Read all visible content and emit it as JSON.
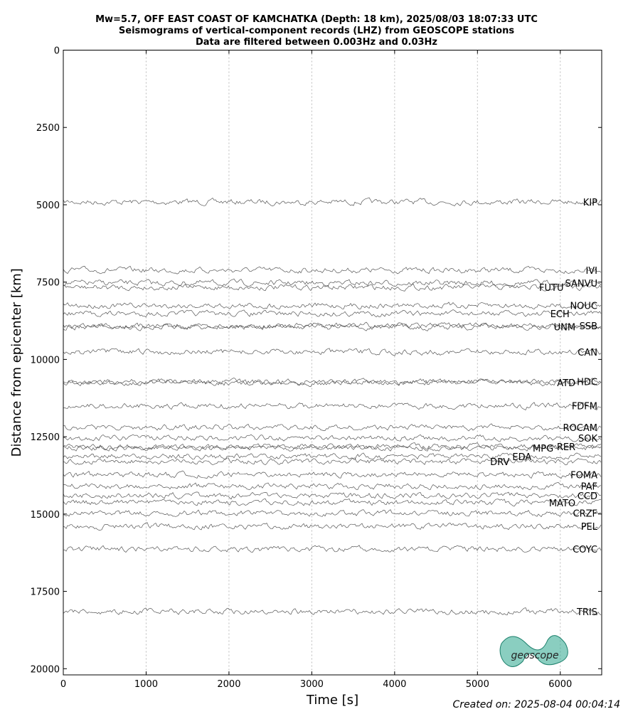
{
  "chart_data": {
    "type": "seismogram",
    "title": [
      "Mw=5.7, OFF EAST COAST OF KAMCHATKA (Depth: 18 km), 2025/08/03 18:07:33 UTC",
      "Seismograms of vertical-component records (LHZ) from GEOSCOPE stations",
      "Data are filtered between 0.003Hz and 0.03Hz"
    ],
    "x_label": "Time [s]",
    "y_label": "Distance from epicenter [km]",
    "xlim": [
      0,
      6500
    ],
    "xticks": [
      0,
      1000,
      2000,
      3000,
      4000,
      5000,
      6000
    ],
    "ylim": [
      0,
      20200
    ],
    "yticks": [
      0,
      2500,
      5000,
      7500,
      10000,
      12500,
      15000,
      17500,
      20000
    ],
    "grid": true,
    "color": "#555555",
    "series": [
      {
        "name": "KIP",
        "distance": 4910
      },
      {
        "name": "IVI",
        "distance": 7115
      },
      {
        "name": "SANVU",
        "distance": 7530
      },
      {
        "name": "FUTU",
        "distance": 7670
      },
      {
        "name": "NOUC",
        "distance": 8260
      },
      {
        "name": "ECH",
        "distance": 8520
      },
      {
        "name": "SSB",
        "distance": 8910
      },
      {
        "name": "UNM",
        "distance": 8950
      },
      {
        "name": "CAN",
        "distance": 9760
      },
      {
        "name": "HDC",
        "distance": 10720
      },
      {
        "name": "ATD",
        "distance": 10750
      },
      {
        "name": "FDFM",
        "distance": 11500
      },
      {
        "name": "ROCAM",
        "distance": 12200
      },
      {
        "name": "SOK",
        "distance": 12540
      },
      {
        "name": "RER",
        "distance": 12820
      },
      {
        "name": "MPG",
        "distance": 12860
      },
      {
        "name": "EDA",
        "distance": 13140
      },
      {
        "name": "DRV",
        "distance": 13300
      },
      {
        "name": "FOMA",
        "distance": 13730
      },
      {
        "name": "PAF",
        "distance": 14100
      },
      {
        "name": "CCD",
        "distance": 14400
      },
      {
        "name": "MATO",
        "distance": 14630
      },
      {
        "name": "CRZF",
        "distance": 14970
      },
      {
        "name": "PEL",
        "distance": 15390
      },
      {
        "name": "COYC",
        "distance": 16130
      },
      {
        "name": "TRIS",
        "distance": 18150
      }
    ],
    "logo_text": "geoscope",
    "footer": "Created on: 2025-08-04 00:04:14"
  }
}
